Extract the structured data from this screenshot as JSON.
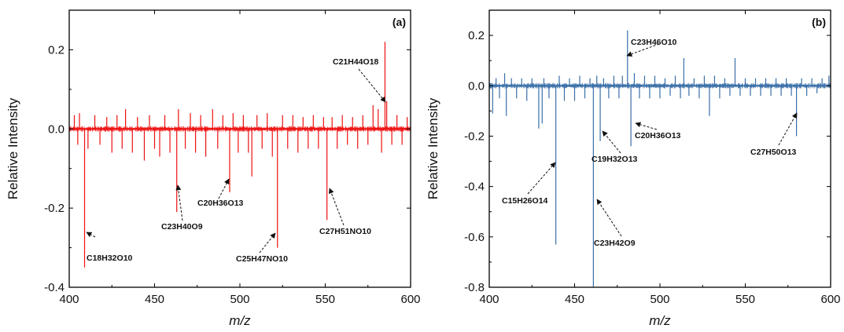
{
  "chart_data": [
    {
      "type": "line",
      "panel_label": "(a)",
      "color": "#ee1111",
      "xlabel": "m/z",
      "ylabel": "Relative Intensity",
      "xlim": [
        400,
        600
      ],
      "ylim": [
        -0.4,
        0.3
      ],
      "xticks": [
        400,
        450,
        500,
        550,
        600
      ],
      "yticks": [
        -0.4,
        -0.2,
        0.0,
        0.2
      ],
      "ytick_labels": [
        "-0.4",
        "-0.2",
        "0.0",
        "0.2"
      ],
      "grid": false,
      "peaks": [
        {
          "x": 403,
          "y": 0.035
        },
        {
          "x": 405,
          "y": -0.04
        },
        {
          "x": 406,
          "y": 0.04
        },
        {
          "x": 409,
          "y": -0.35
        },
        {
          "x": 411,
          "y": -0.05
        },
        {
          "x": 415,
          "y": 0.035
        },
        {
          "x": 418,
          "y": -0.04
        },
        {
          "x": 422,
          "y": 0.03
        },
        {
          "x": 425,
          "y": -0.06
        },
        {
          "x": 428,
          "y": 0.035
        },
        {
          "x": 431,
          "y": -0.05
        },
        {
          "x": 433,
          "y": 0.05
        },
        {
          "x": 437,
          "y": -0.06
        },
        {
          "x": 440,
          "y": 0.03
        },
        {
          "x": 444,
          "y": -0.08
        },
        {
          "x": 447,
          "y": 0.035
        },
        {
          "x": 450,
          "y": -0.05
        },
        {
          "x": 453,
          "y": -0.07
        },
        {
          "x": 456,
          "y": 0.035
        },
        {
          "x": 459,
          "y": -0.06
        },
        {
          "x": 463,
          "y": -0.21
        },
        {
          "x": 464,
          "y": 0.05
        },
        {
          "x": 468,
          "y": -0.05
        },
        {
          "x": 471,
          "y": 0.04
        },
        {
          "x": 474,
          "y": -0.06
        },
        {
          "x": 477,
          "y": 0.035
        },
        {
          "x": 480,
          "y": -0.07
        },
        {
          "x": 484,
          "y": 0.05
        },
        {
          "x": 487,
          "y": -0.05
        },
        {
          "x": 490,
          "y": 0.035
        },
        {
          "x": 494,
          "y": -0.16
        },
        {
          "x": 496,
          "y": 0.04
        },
        {
          "x": 499,
          "y": -0.06
        },
        {
          "x": 502,
          "y": 0.035
        },
        {
          "x": 505,
          "y": -0.06
        },
        {
          "x": 507,
          "y": -0.12
        },
        {
          "x": 510,
          "y": 0.035
        },
        {
          "x": 513,
          "y": -0.05
        },
        {
          "x": 516,
          "y": 0.04
        },
        {
          "x": 519,
          "y": -0.07
        },
        {
          "x": 522,
          "y": -0.3
        },
        {
          "x": 525,
          "y": 0.035
        },
        {
          "x": 528,
          "y": -0.05
        },
        {
          "x": 531,
          "y": 0.035
        },
        {
          "x": 534,
          "y": -0.06
        },
        {
          "x": 537,
          "y": 0.03
        },
        {
          "x": 540,
          "y": -0.05
        },
        {
          "x": 543,
          "y": 0.035
        },
        {
          "x": 546,
          "y": -0.05
        },
        {
          "x": 549,
          "y": 0.03
        },
        {
          "x": 551,
          "y": -0.23
        },
        {
          "x": 554,
          "y": 0.03
        },
        {
          "x": 557,
          "y": -0.05
        },
        {
          "x": 560,
          "y": 0.035
        },
        {
          "x": 563,
          "y": -0.04
        },
        {
          "x": 566,
          "y": 0.03
        },
        {
          "x": 569,
          "y": -0.05
        },
        {
          "x": 572,
          "y": 0.035
        },
        {
          "x": 575,
          "y": -0.04
        },
        {
          "x": 578,
          "y": 0.06
        },
        {
          "x": 581,
          "y": 0.05
        },
        {
          "x": 583,
          "y": -0.06
        },
        {
          "x": 585,
          "y": 0.22
        },
        {
          "x": 586,
          "y": 0.07
        },
        {
          "x": 589,
          "y": -0.04
        },
        {
          "x": 592,
          "y": 0.035
        },
        {
          "x": 595,
          "y": -0.04
        },
        {
          "x": 598,
          "y": 0.03
        }
      ],
      "annotations": [
        {
          "text": "C18H32O10",
          "x": 409,
          "y": -0.35
        },
        {
          "text": "C23H40O9",
          "x": 463,
          "y": -0.21
        },
        {
          "text": "C20H36O13",
          "x": 494,
          "y": -0.16
        },
        {
          "text": "C25H47NO10",
          "x": 522,
          "y": -0.3
        },
        {
          "text": "C27H51NO10",
          "x": 551,
          "y": -0.23
        },
        {
          "text": "C21H44O18",
          "x": 585,
          "y": 0.22
        }
      ]
    },
    {
      "type": "line",
      "panel_label": "(b)",
      "color": "#3a6fa8",
      "xlabel": "m/z",
      "ylabel": "Relative Intensity",
      "xlim": [
        400,
        600
      ],
      "ylim": [
        -0.8,
        0.3
      ],
      "xticks": [
        400,
        450,
        500,
        550,
        600
      ],
      "yticks": [
        -0.8,
        -0.6,
        -0.4,
        -0.2,
        0.0,
        0.2
      ],
      "ytick_labels": [
        "-0.8",
        "-0.6",
        "-0.4",
        "-0.2",
        "0.0",
        "0.2"
      ],
      "grid": false,
      "peaks": [
        {
          "x": 402,
          "y": -0.11
        },
        {
          "x": 404,
          "y": 0.03
        },
        {
          "x": 406,
          "y": -0.05
        },
        {
          "x": 409,
          "y": 0.05
        },
        {
          "x": 410,
          "y": -0.12
        },
        {
          "x": 413,
          "y": 0.03
        },
        {
          "x": 416,
          "y": -0.05
        },
        {
          "x": 419,
          "y": 0.03
        },
        {
          "x": 422,
          "y": -0.06
        },
        {
          "x": 425,
          "y": 0.03
        },
        {
          "x": 429,
          "y": -0.17
        },
        {
          "x": 431,
          "y": -0.15
        },
        {
          "x": 432,
          "y": 0.03
        },
        {
          "x": 435,
          "y": -0.05
        },
        {
          "x": 439,
          "y": -0.63
        },
        {
          "x": 441,
          "y": 0.04
        },
        {
          "x": 444,
          "y": -0.06
        },
        {
          "x": 447,
          "y": 0.03
        },
        {
          "x": 450,
          "y": -0.06
        },
        {
          "x": 453,
          "y": 0.04
        },
        {
          "x": 456,
          "y": -0.05
        },
        {
          "x": 459,
          "y": 0.03
        },
        {
          "x": 461,
          "y": -0.8
        },
        {
          "x": 463,
          "y": 0.04
        },
        {
          "x": 465,
          "y": -0.22
        },
        {
          "x": 467,
          "y": 0.03
        },
        {
          "x": 470,
          "y": -0.05
        },
        {
          "x": 473,
          "y": 0.04
        },
        {
          "x": 476,
          "y": -0.05
        },
        {
          "x": 478,
          "y": 0.04
        },
        {
          "x": 481,
          "y": 0.22
        },
        {
          "x": 483,
          "y": -0.24
        },
        {
          "x": 485,
          "y": 0.05
        },
        {
          "x": 488,
          "y": -0.05
        },
        {
          "x": 491,
          "y": 0.04
        },
        {
          "x": 494,
          "y": -0.05
        },
        {
          "x": 497,
          "y": 0.04
        },
        {
          "x": 500,
          "y": -0.05
        },
        {
          "x": 503,
          "y": 0.03
        },
        {
          "x": 506,
          "y": -0.04
        },
        {
          "x": 509,
          "y": 0.04
        },
        {
          "x": 512,
          "y": -0.05
        },
        {
          "x": 514,
          "y": 0.11
        },
        {
          "x": 517,
          "y": -0.04
        },
        {
          "x": 520,
          "y": 0.03
        },
        {
          "x": 523,
          "y": -0.05
        },
        {
          "x": 526,
          "y": 0.04
        },
        {
          "x": 529,
          "y": -0.12
        },
        {
          "x": 532,
          "y": 0.04
        },
        {
          "x": 535,
          "y": -0.05
        },
        {
          "x": 538,
          "y": 0.03
        },
        {
          "x": 541,
          "y": -0.04
        },
        {
          "x": 544,
          "y": 0.11
        },
        {
          "x": 547,
          "y": -0.04
        },
        {
          "x": 550,
          "y": 0.03
        },
        {
          "x": 553,
          "y": -0.04
        },
        {
          "x": 556,
          "y": 0.03
        },
        {
          "x": 559,
          "y": -0.04
        },
        {
          "x": 562,
          "y": 0.03
        },
        {
          "x": 565,
          "y": -0.04
        },
        {
          "x": 568,
          "y": 0.03
        },
        {
          "x": 571,
          "y": -0.04
        },
        {
          "x": 574,
          "y": 0.03
        },
        {
          "x": 577,
          "y": -0.04
        },
        {
          "x": 580,
          "y": -0.2
        },
        {
          "x": 583,
          "y": 0.03
        },
        {
          "x": 586,
          "y": -0.04
        },
        {
          "x": 589,
          "y": 0.03
        },
        {
          "x": 592,
          "y": -0.03
        },
        {
          "x": 595,
          "y": 0.03
        },
        {
          "x": 599,
          "y": 0.04
        }
      ],
      "annotations": [
        {
          "text": "C23H46O10",
          "x": 481,
          "y": 0.22
        },
        {
          "text": "C20H36O13",
          "x": 483,
          "y": -0.24
        },
        {
          "text": "C19H32O13",
          "x": 465,
          "y": -0.22
        },
        {
          "text": "C15H26O14",
          "x": 439,
          "y": -0.63
        },
        {
          "text": "C23H42O9",
          "x": 461,
          "y": -0.8
        },
        {
          "text": "C27H50O13",
          "x": 580,
          "y": -0.2
        }
      ]
    }
  ]
}
